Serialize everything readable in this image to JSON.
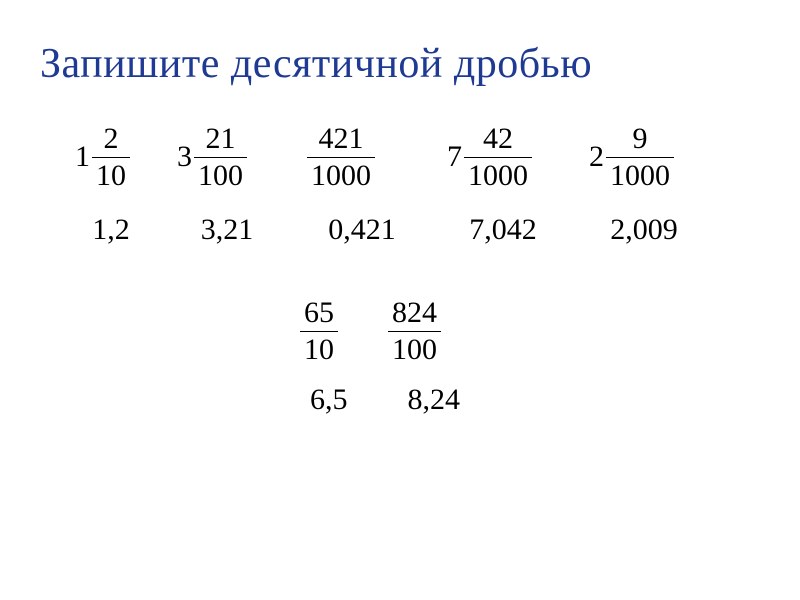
{
  "title": "Запишите десятичной дробью",
  "row1": {
    "fractions": [
      {
        "whole": "1",
        "num": "2",
        "den": "10"
      },
      {
        "whole": "3",
        "num": "21",
        "den": "100"
      },
      {
        "whole": "",
        "num": "421",
        "den": "1000"
      },
      {
        "whole": "7",
        "num": "42",
        "den": "1000"
      },
      {
        "whole": "2",
        "num": "9",
        "den": "1000"
      }
    ],
    "answers": [
      "1,2",
      "3,21",
      "0,421",
      "7,042",
      "2,009"
    ]
  },
  "row2": {
    "fractions": [
      {
        "num": "65",
        "den": "10"
      },
      {
        "num": "824",
        "den": "100"
      }
    ],
    "answers": [
      "6,5",
      "8,24"
    ]
  },
  "colors": {
    "title": "#1f3a93",
    "text": "#000000",
    "background": "#ffffff"
  },
  "fontsize": {
    "title": 42,
    "math": 30
  }
}
